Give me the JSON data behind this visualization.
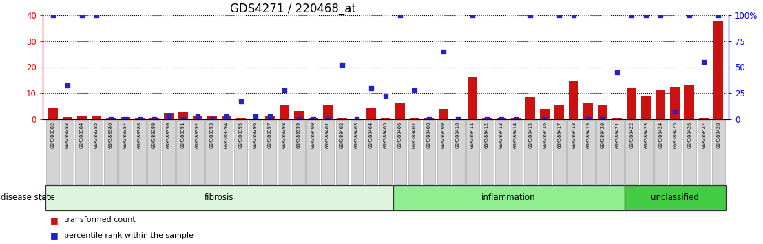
{
  "title": "GDS4271 / 220468_at",
  "samples": [
    "GSM380382",
    "GSM380383",
    "GSM380384",
    "GSM380385",
    "GSM380386",
    "GSM380387",
    "GSM380388",
    "GSM380389",
    "GSM380390",
    "GSM380391",
    "GSM380392",
    "GSM380393",
    "GSM380394",
    "GSM380395",
    "GSM380396",
    "GSM380397",
    "GSM380398",
    "GSM380399",
    "GSM380400",
    "GSM380401",
    "GSM380402",
    "GSM380403",
    "GSM380404",
    "GSM380405",
    "GSM380406",
    "GSM380407",
    "GSM380408",
    "GSM380409",
    "GSM380410",
    "GSM380411",
    "GSM380412",
    "GSM380413",
    "GSM380414",
    "GSM380415",
    "GSM380416",
    "GSM380417",
    "GSM380418",
    "GSM380419",
    "GSM380420",
    "GSM380421",
    "GSM380422",
    "GSM380423",
    "GSM380424",
    "GSM380425",
    "GSM380426",
    "GSM380427",
    "GSM380428"
  ],
  "red_values": [
    4.2,
    0.8,
    1.0,
    1.2,
    0.5,
    0.8,
    0.5,
    0.5,
    2.5,
    2.8,
    1.2,
    1.0,
    1.2,
    0.4,
    0.3,
    1.0,
    5.5,
    3.2,
    0.5,
    5.5,
    0.4,
    0.3,
    4.5,
    0.4,
    6.0,
    0.4,
    0.4,
    4.0,
    0.3,
    16.5,
    0.5,
    0.5,
    0.4,
    8.5,
    4.0,
    5.5,
    14.5,
    6.0,
    5.5,
    0.5,
    12.0,
    9.0,
    11.0,
    12.5,
    13.0,
    0.5,
    37.5
  ],
  "blue_values": [
    40,
    13,
    40,
    40,
    0,
    0,
    0,
    0,
    1,
    0,
    1,
    0,
    1,
    7,
    1,
    1,
    11,
    0,
    0,
    0,
    21,
    0,
    12,
    9,
    40,
    11,
    0,
    26,
    0,
    40,
    0,
    0,
    0,
    40,
    0,
    40,
    40,
    0,
    0,
    18,
    40,
    40,
    40,
    3,
    40,
    22,
    40
  ],
  "groups": [
    {
      "label": "fibrosis",
      "start": 0,
      "end": 24,
      "color": "#ddf5dd"
    },
    {
      "label": "inflammation",
      "start": 24,
      "end": 40,
      "color": "#90ee90"
    },
    {
      "label": "unclassified",
      "start": 40,
      "end": 47,
      "color": "#44cc44"
    }
  ],
  "ylim_left": [
    0,
    40
  ],
  "ylim_right": [
    0,
    100
  ],
  "yticks_left": [
    0,
    10,
    20,
    30,
    40
  ],
  "yticks_right": [
    0,
    25,
    50,
    75,
    100
  ],
  "ytick_labels_right": [
    "0",
    "25",
    "50",
    "75",
    "100%"
  ],
  "bar_color": "#cc1111",
  "dot_color": "#2222cc",
  "title_fontsize": 12,
  "legend_items": [
    {
      "label": "transformed count",
      "color": "#cc1111"
    },
    {
      "label": "percentile rank within the sample",
      "color": "#2222cc"
    }
  ]
}
